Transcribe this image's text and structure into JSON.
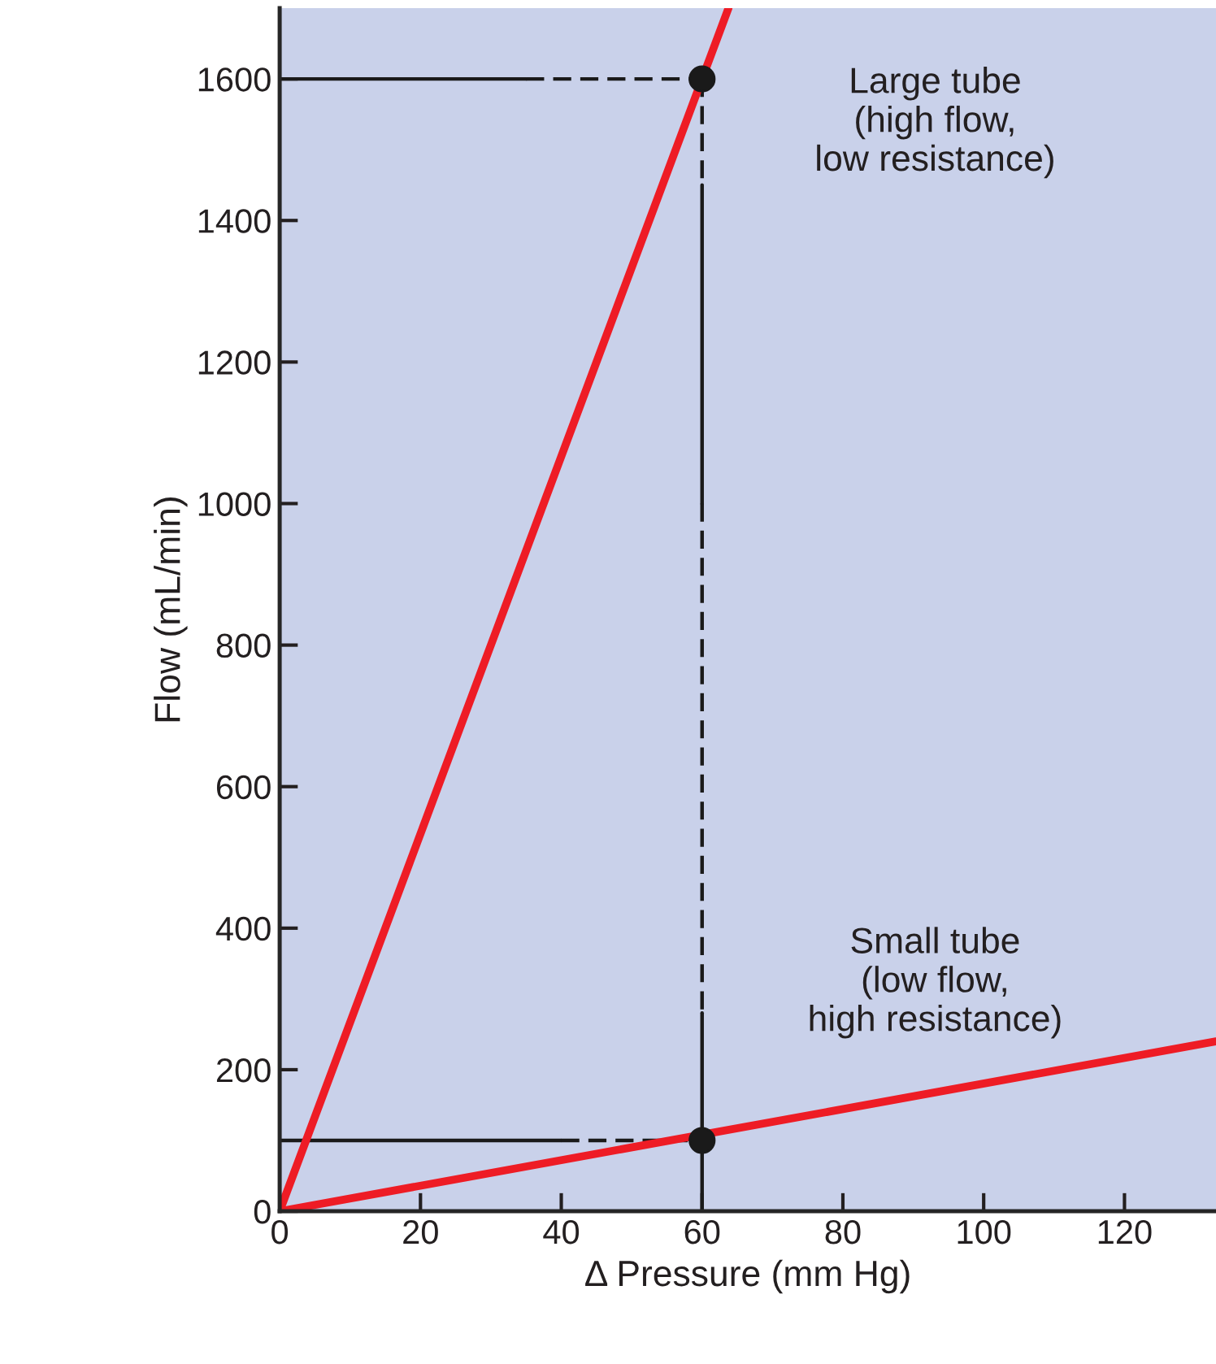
{
  "chart_data": {
    "type": "line",
    "xlabel": "Δ Pressure (mm Hg)",
    "ylabel": "Flow (mL/min)",
    "xlim": [
      0,
      133
    ],
    "ylim": [
      0,
      1700
    ],
    "xticks": [
      0,
      20,
      40,
      60,
      80,
      100,
      120
    ],
    "yticks": [
      0,
      200,
      400,
      600,
      800,
      1000,
      1200,
      1400,
      1600
    ],
    "grid": false,
    "legend": false,
    "series": [
      {
        "color": "#1a1a1a",
        "line_style": "solid",
        "x": [
          0,
          35
        ],
        "values": [
          1600,
          1600
        ]
      },
      {
        "color": "#1a1a1a",
        "line_style": "dashed",
        "x": [
          35,
          60
        ],
        "values": [
          1600,
          1600
        ]
      },
      {
        "color": "#1a1a1a",
        "line_style": "solid",
        "x": [
          0,
          40
        ],
        "values": [
          100,
          100
        ]
      },
      {
        "color": "#1a1a1a",
        "line_style": "dashed",
        "x": [
          40,
          60
        ],
        "values": [
          100,
          100
        ]
      },
      {
        "color": "#1a1a1a",
        "line_style": "dashed",
        "x": [
          60,
          60
        ],
        "values": [
          1600,
          1450
        ]
      },
      {
        "color": "#1a1a1a",
        "line_style": "solid",
        "x": [
          60,
          60
        ],
        "values": [
          1450,
          1000
        ]
      },
      {
        "color": "#1a1a1a",
        "line_style": "dashed",
        "x": [
          60,
          60
        ],
        "values": [
          1000,
          280
        ]
      },
      {
        "color": "#1a1a1a",
        "line_style": "solid",
        "x": [
          60,
          60
        ],
        "values": [
          280,
          0
        ]
      },
      {
        "color": "#ee1c25",
        "line_style": "solid",
        "x": [
          0,
          63.75
        ],
        "values": [
          0,
          1700
        ]
      },
      {
        "color": "#ee1c25",
        "line_style": "solid",
        "x": [
          0,
          133
        ],
        "values": [
          0,
          240
        ]
      },
      {
        "type": "scatter",
        "color": "#1a1a1a",
        "marker": "circle",
        "x": [
          60,
          60
        ],
        "values": [
          1600,
          100
        ]
      }
    ],
    "annotations": [
      "Large tube\n(high flow,\nlow resistance)",
      "Small tube\n(low flow,\nhigh resistance)"
    ]
  }
}
